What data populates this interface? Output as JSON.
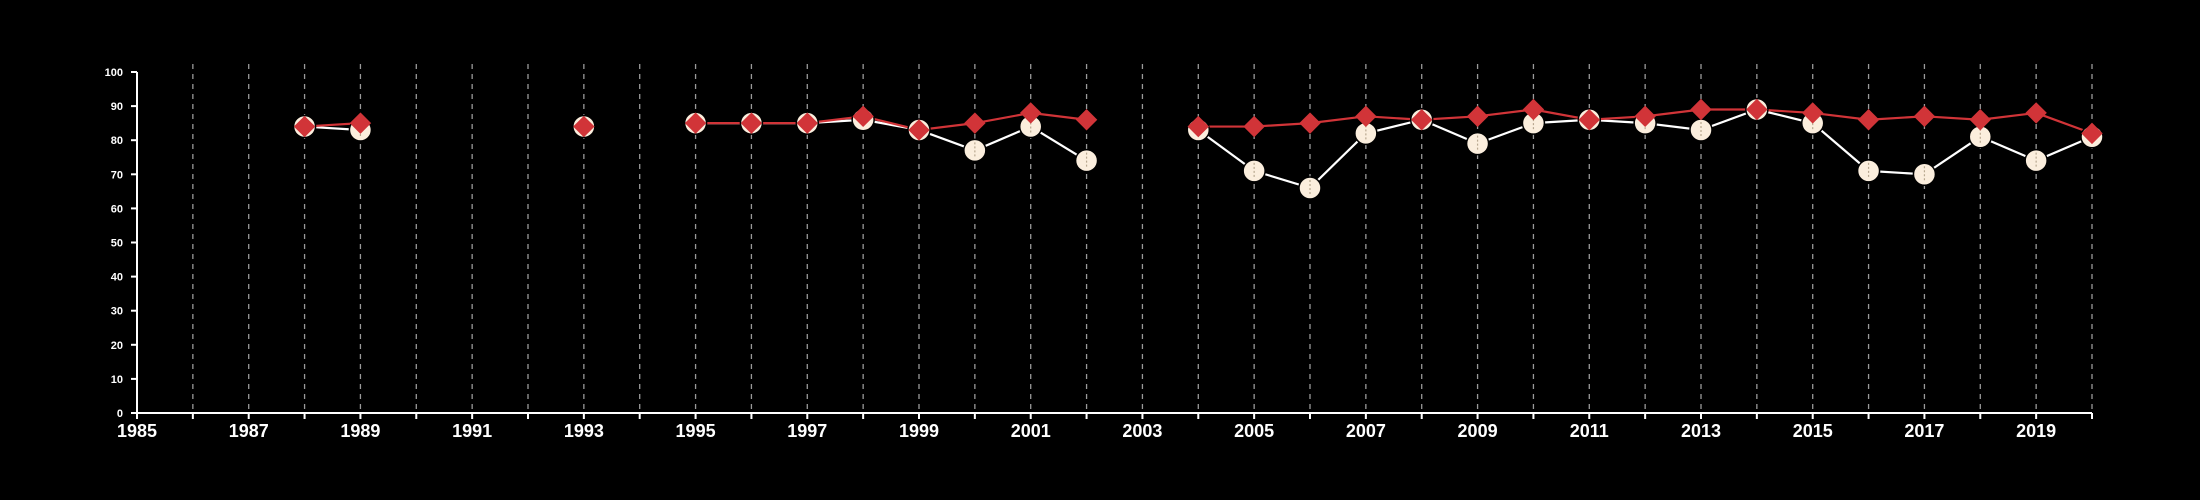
{
  "chart_data": {
    "type": "line",
    "title": "",
    "xlabel": "",
    "ylabel": "",
    "xlim": [
      1985,
      2020
    ],
    "ylim": [
      0,
      100
    ],
    "y_ticks": [
      0,
      10,
      20,
      30,
      40,
      50,
      60,
      70,
      80,
      90,
      100
    ],
    "x_tick_labels": [
      "1985",
      "1987",
      "1989",
      "1991",
      "1993",
      "1995",
      "1997",
      "1999",
      "2001",
      "2003",
      "2005",
      "2007",
      "2009",
      "2011",
      "2013",
      "2015",
      "2017",
      "2019"
    ],
    "grid": "vertical dashed lines at each year",
    "background_color": "#000000",
    "series": [
      {
        "marker": "circle",
        "color": "#fbeedd",
        "line_color": "#ffffff",
        "points": [
          {
            "x": 1988,
            "y": 84
          },
          {
            "x": 1989,
            "y": 83
          },
          {
            "x": 1993,
            "y": 84
          },
          {
            "x": 1995,
            "y": 85
          },
          {
            "x": 1996,
            "y": 85
          },
          {
            "x": 1997,
            "y": 85
          },
          {
            "x": 1998,
            "y": 86
          },
          {
            "x": 1999,
            "y": 83
          },
          {
            "x": 2000,
            "y": 77
          },
          {
            "x": 2001,
            "y": 84
          },
          {
            "x": 2002,
            "y": 74
          },
          {
            "x": 2004,
            "y": 83
          },
          {
            "x": 2005,
            "y": 71
          },
          {
            "x": 2006,
            "y": 66
          },
          {
            "x": 2007,
            "y": 82
          },
          {
            "x": 2008,
            "y": 86
          },
          {
            "x": 2009,
            "y": 79
          },
          {
            "x": 2010,
            "y": 85
          },
          {
            "x": 2011,
            "y": 86
          },
          {
            "x": 2012,
            "y": 85
          },
          {
            "x": 2013,
            "y": 83
          },
          {
            "x": 2014,
            "y": 89
          },
          {
            "x": 2015,
            "y": 85
          },
          {
            "x": 2016,
            "y": 71
          },
          {
            "x": 2017,
            "y": 70
          },
          {
            "x": 2018,
            "y": 81
          },
          {
            "x": 2019,
            "y": 74
          },
          {
            "x": 2020,
            "y": 81
          }
        ]
      },
      {
        "marker": "diamond",
        "color": "#d13438",
        "line_color": "#d13438",
        "points": [
          {
            "x": 1988,
            "y": 84
          },
          {
            "x": 1989,
            "y": 85
          },
          {
            "x": 1993,
            "y": 84
          },
          {
            "x": 1995,
            "y": 85
          },
          {
            "x": 1996,
            "y": 85
          },
          {
            "x": 1997,
            "y": 85
          },
          {
            "x": 1998,
            "y": 87
          },
          {
            "x": 1999,
            "y": 83
          },
          {
            "x": 2000,
            "y": 85
          },
          {
            "x": 2001,
            "y": 88
          },
          {
            "x": 2002,
            "y": 86
          },
          {
            "x": 2004,
            "y": 84
          },
          {
            "x": 2005,
            "y": 84
          },
          {
            "x": 2006,
            "y": 85
          },
          {
            "x": 2007,
            "y": 87
          },
          {
            "x": 2008,
            "y": 86
          },
          {
            "x": 2009,
            "y": 87
          },
          {
            "x": 2010,
            "y": 89
          },
          {
            "x": 2011,
            "y": 86
          },
          {
            "x": 2012,
            "y": 87
          },
          {
            "x": 2013,
            "y": 89
          },
          {
            "x": 2014,
            "y": 89
          },
          {
            "x": 2015,
            "y": 88
          },
          {
            "x": 2016,
            "y": 86
          },
          {
            "x": 2017,
            "y": 87
          },
          {
            "x": 2018,
            "y": 86
          },
          {
            "x": 2019,
            "y": 88
          },
          {
            "x": 2020,
            "y": 82
          }
        ]
      }
    ]
  }
}
